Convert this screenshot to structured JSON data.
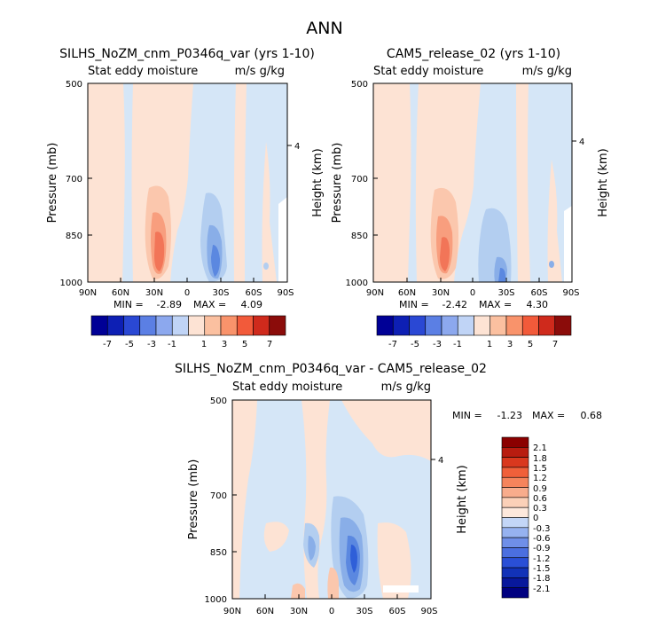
{
  "page_title": "ANN",
  "chart_data": [
    {
      "type": "heatmap",
      "title": "SILHS_NoZM_cnm_P0346q_var  (yrs 1-10)",
      "subtitle_left": "Stat eddy moisture",
      "subtitle_right": "m/s g/kg",
      "ylabel": "Pressure (mb)",
      "y2label": "Height (km)",
      "x_ticks": [
        "90N",
        "60N",
        "30N",
        "0",
        "30S",
        "60S",
        "90S"
      ],
      "y_ticks": [
        "500",
        "700",
        "850",
        "1000"
      ],
      "y2_ticks": [
        "4"
      ],
      "min_label": "MIN =",
      "min_value": "-2.89",
      "max_label": "MAX =",
      "max_value": "4.09",
      "colorbar_labels": [
        "-7",
        "-5",
        "-3",
        "-1",
        "1",
        "3",
        "5",
        "7"
      ]
    },
    {
      "type": "heatmap",
      "title": "CAM5_release_02  (yrs 1-10)",
      "subtitle_left": "Stat eddy moisture",
      "subtitle_right": "m/s g/kg",
      "ylabel": "Pressure (mb)",
      "y2label": "Height (km)",
      "x_ticks": [
        "90N",
        "60N",
        "30N",
        "0",
        "30S",
        "60S",
        "90S"
      ],
      "y_ticks": [
        "500",
        "700",
        "850",
        "1000"
      ],
      "y2_ticks": [
        "4"
      ],
      "min_label": "MIN =",
      "min_value": "-2.42",
      "max_label": "MAX =",
      "max_value": "4.30",
      "colorbar_labels": [
        "-7",
        "-5",
        "-3",
        "-1",
        "1",
        "3",
        "5",
        "7"
      ]
    },
    {
      "type": "heatmap",
      "title": "SILHS_NoZM_cnm_P0346q_var - CAM5_release_02",
      "subtitle_left": "Stat eddy moisture",
      "subtitle_right": "m/s g/kg",
      "ylabel": "Pressure (mb)",
      "y2label": "Height (km)",
      "x_ticks": [
        "90N",
        "60N",
        "30N",
        "0",
        "30S",
        "60S",
        "90S"
      ],
      "y_ticks": [
        "500",
        "700",
        "850",
        "1000"
      ],
      "y2_ticks": [
        "4"
      ],
      "min_label": "MIN =",
      "min_value": "-1.23",
      "max_label": "MAX =",
      "max_value": "0.68",
      "colorbar_labels": [
        "2.1",
        "1.8",
        "1.5",
        "1.2",
        "0.9",
        "0.6",
        "0.3",
        "0",
        "-0.3",
        "-0.6",
        "-0.9",
        "-1.2",
        "-1.5",
        "-1.8",
        "-2.1"
      ]
    }
  ],
  "colors": {
    "pos1": "#fde3d4",
    "pos2": "#fbc7ad",
    "pos3": "#f89e7e",
    "pos4": "#f27558",
    "neg1": "#d5e6f7",
    "neg2": "#b3cef0",
    "neg3": "#89aee8",
    "neg4": "#5b88e0",
    "neg5": "#2f5fd8",
    "blank": "#ffffff"
  },
  "colorbar_scale_12": [
    "#000096",
    "#0d1fb4",
    "#2a48d4",
    "#5b7fe4",
    "#8ca8ee",
    "#c0d4f6",
    "#fde3d4",
    "#fbc0a0",
    "#f9936b",
    "#f25a3a",
    "#cf2a1c",
    "#8b0c0a"
  ],
  "colorbar_scale_16": [
    "#000080",
    "#08189c",
    "#1232b8",
    "#2a4fd6",
    "#4b6fe0",
    "#6f8fe8",
    "#96b2f0",
    "#c3d6f7",
    "#fde8dc",
    "#fbd0b8",
    "#f8ac8c",
    "#f5845c",
    "#f0603a",
    "#d9381e",
    "#b81c10",
    "#8b0000"
  ]
}
